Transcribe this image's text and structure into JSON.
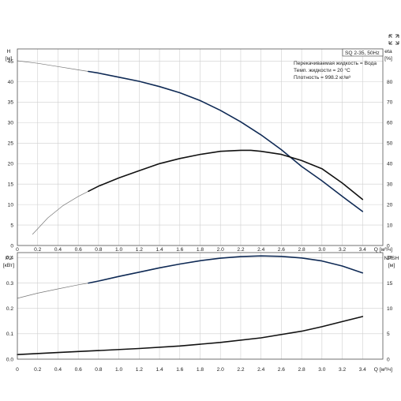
{
  "chart_data": [
    {
      "type": "line",
      "title": "SQ 2-35, 50Hz",
      "annotations": [
        "Перекачиваемая жидкость = Вода",
        "Темп. жидкости = 20 °C",
        "Плотность = 998.2 кг/м³"
      ],
      "xlabel": "Q [м³/ч]",
      "xlim": [
        0,
        3.6
      ],
      "x_ticks": [
        "0",
        "0.2",
        "0.4",
        "0.6",
        "0.8",
        "1.0",
        "1.2",
        "1.4",
        "1.6",
        "1.8",
        "2.0",
        "2.2",
        "2.4",
        "2.6",
        "2.8",
        "3.0",
        "3.2",
        "3.4"
      ],
      "ylabel_left": "H",
      "ylabel_left_unit": "[м]",
      "ylim_left": [
        0,
        48
      ],
      "y_ticks_left": [
        "0",
        "5",
        "10",
        "15",
        "20",
        "25",
        "30",
        "35",
        "40",
        "45"
      ],
      "ylabel_right": "eta",
      "ylabel_right_unit": "[%]",
      "ylim_right": [
        0,
        96
      ],
      "y_ticks_right": [
        "0",
        "10",
        "20",
        "30",
        "40",
        "50",
        "60",
        "70",
        "80"
      ],
      "grid": true,
      "series": [
        {
          "axis": "left",
          "color": "#0f2a55",
          "x": [
            0,
            0.2,
            0.4,
            0.6,
            0.7,
            0.8,
            1.0,
            1.2,
            1.4,
            1.6,
            1.8,
            2.0,
            2.2,
            2.4,
            2.6,
            2.8,
            3.0,
            3.2,
            3.4
          ],
          "values": [
            45.1,
            44.5,
            43.7,
            42.9,
            42.5,
            42.1,
            41.1,
            40.1,
            38.8,
            37.3,
            35.4,
            33.0,
            30.2,
            27.0,
            23.4,
            19.3,
            15.8,
            12.0,
            8.3
          ],
          "thin_until_x": 0.7
        },
        {
          "axis": "right",
          "color": "#111111",
          "x": [
            0.15,
            0.3,
            0.45,
            0.6,
            0.7,
            0.8,
            1.0,
            1.2,
            1.4,
            1.6,
            1.8,
            2.0,
            2.2,
            2.3,
            2.4,
            2.6,
            2.8,
            3.0,
            3.2,
            3.4
          ],
          "values": [
            5.5,
            13.5,
            19.5,
            24.0,
            26.5,
            29.0,
            33.0,
            36.5,
            40.0,
            42.5,
            44.5,
            46.0,
            46.5,
            46.5,
            46.0,
            44.5,
            41.5,
            37.5,
            30.5,
            22.5
          ],
          "thin_until_x": 0.7
        }
      ]
    },
    {
      "type": "line",
      "xlabel": "Q [м³/ч]",
      "xlim": [
        0,
        3.6
      ],
      "x_ticks": [
        "0",
        "0.2",
        "0.4",
        "0.6",
        "0.8",
        "1.0",
        "1.2",
        "1.4",
        "1.6",
        "1.8",
        "2.0",
        "2.2",
        "2.4",
        "2.6",
        "2.8",
        "3.0",
        "3.2",
        "3.4"
      ],
      "ylabel_left": "P2",
      "ylabel_left_unit": "[кВт]",
      "ylim_left": [
        0,
        0.42
      ],
      "y_ticks_left": [
        "0.0",
        "0.1",
        "0.2",
        "0.3",
        "0.4"
      ],
      "ylabel_right": "NPSH",
      "ylabel_right_unit": "[м]",
      "ylim_right": [
        0,
        21
      ],
      "y_ticks_right": [
        "0",
        "5",
        "10",
        "15",
        "20"
      ],
      "grid": true,
      "series": [
        {
          "axis": "left",
          "color": "#0f2a55",
          "x": [
            0,
            0.2,
            0.4,
            0.6,
            0.7,
            0.8,
            1.0,
            1.2,
            1.4,
            1.6,
            1.8,
            2.0,
            2.2,
            2.4,
            2.6,
            2.8,
            3.0,
            3.2,
            3.4
          ],
          "values": [
            0.24,
            0.26,
            0.277,
            0.293,
            0.3,
            0.308,
            0.326,
            0.343,
            0.36,
            0.375,
            0.388,
            0.398,
            0.404,
            0.407,
            0.405,
            0.399,
            0.387,
            0.367,
            0.34
          ],
          "thin_until_x": 0.7
        },
        {
          "axis": "right",
          "color": "#111111",
          "x": [
            0,
            0.4,
            0.8,
            1.2,
            1.6,
            2.0,
            2.4,
            2.8,
            3.0,
            3.2,
            3.4
          ],
          "values": [
            0.9,
            1.3,
            1.7,
            2.1,
            2.6,
            3.3,
            4.2,
            5.5,
            6.4,
            7.4,
            8.4
          ],
          "thin_until_x": 0
        }
      ]
    }
  ],
  "expand_icon": "expand-arrows-icon"
}
